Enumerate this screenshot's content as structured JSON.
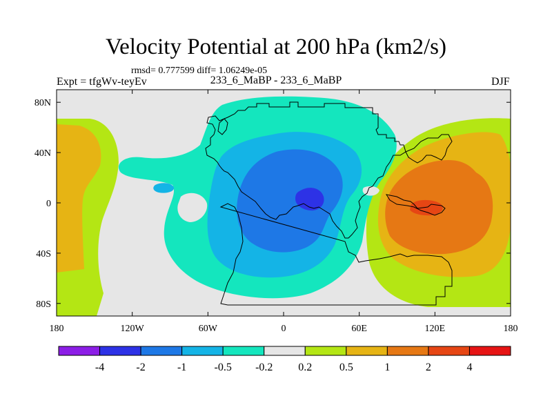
{
  "chart_data": {
    "type": "heatmap",
    "title": "Velocity Potential at 200 hPa (km2/s)",
    "stats_line": "rmsd= 0.777599 diff= 1.06249e-05",
    "experiment_label": "Expt = tfgWv-teyEv",
    "case_label": "233_6_MaBP - 233_6_MaBP",
    "season": "DJF",
    "x_axis": {
      "range": [
        -180,
        180
      ],
      "ticks": [
        -180,
        -120,
        -60,
        0,
        60,
        120,
        180
      ],
      "tick_labels": [
        "180",
        "120W",
        "60W",
        "0",
        "60E",
        "120E",
        "180"
      ]
    },
    "y_axis": {
      "range": [
        -90,
        90
      ],
      "ticks": [
        80,
        40,
        0,
        -40,
        -80
      ],
      "tick_labels": [
        "80N",
        "40N",
        "0",
        "40S",
        "80S"
      ]
    },
    "colorbar": {
      "colors": [
        "#8c1ee6",
        "#2d32e6",
        "#1e78e6",
        "#14b4e6",
        "#14e6be",
        "#e6e6e6",
        "#b4e614",
        "#e6b414",
        "#e67814",
        "#e64614",
        "#e61414"
      ],
      "labels": [
        "-4",
        "-2",
        "-1",
        "-0.5",
        "-0.2",
        "0.2",
        "0.5",
        "1",
        "2",
        "4"
      ]
    },
    "fields": {
      "minimum_center": {
        "lon": 20,
        "lat": 2,
        "level": "below -2"
      },
      "maximum_center": {
        "lon": 110,
        "lat": 0,
        "level": "2 to 4"
      },
      "western_edge_positive": {
        "lon": -170,
        "lat": -10,
        "level": "0.5 to 1"
      }
    }
  }
}
